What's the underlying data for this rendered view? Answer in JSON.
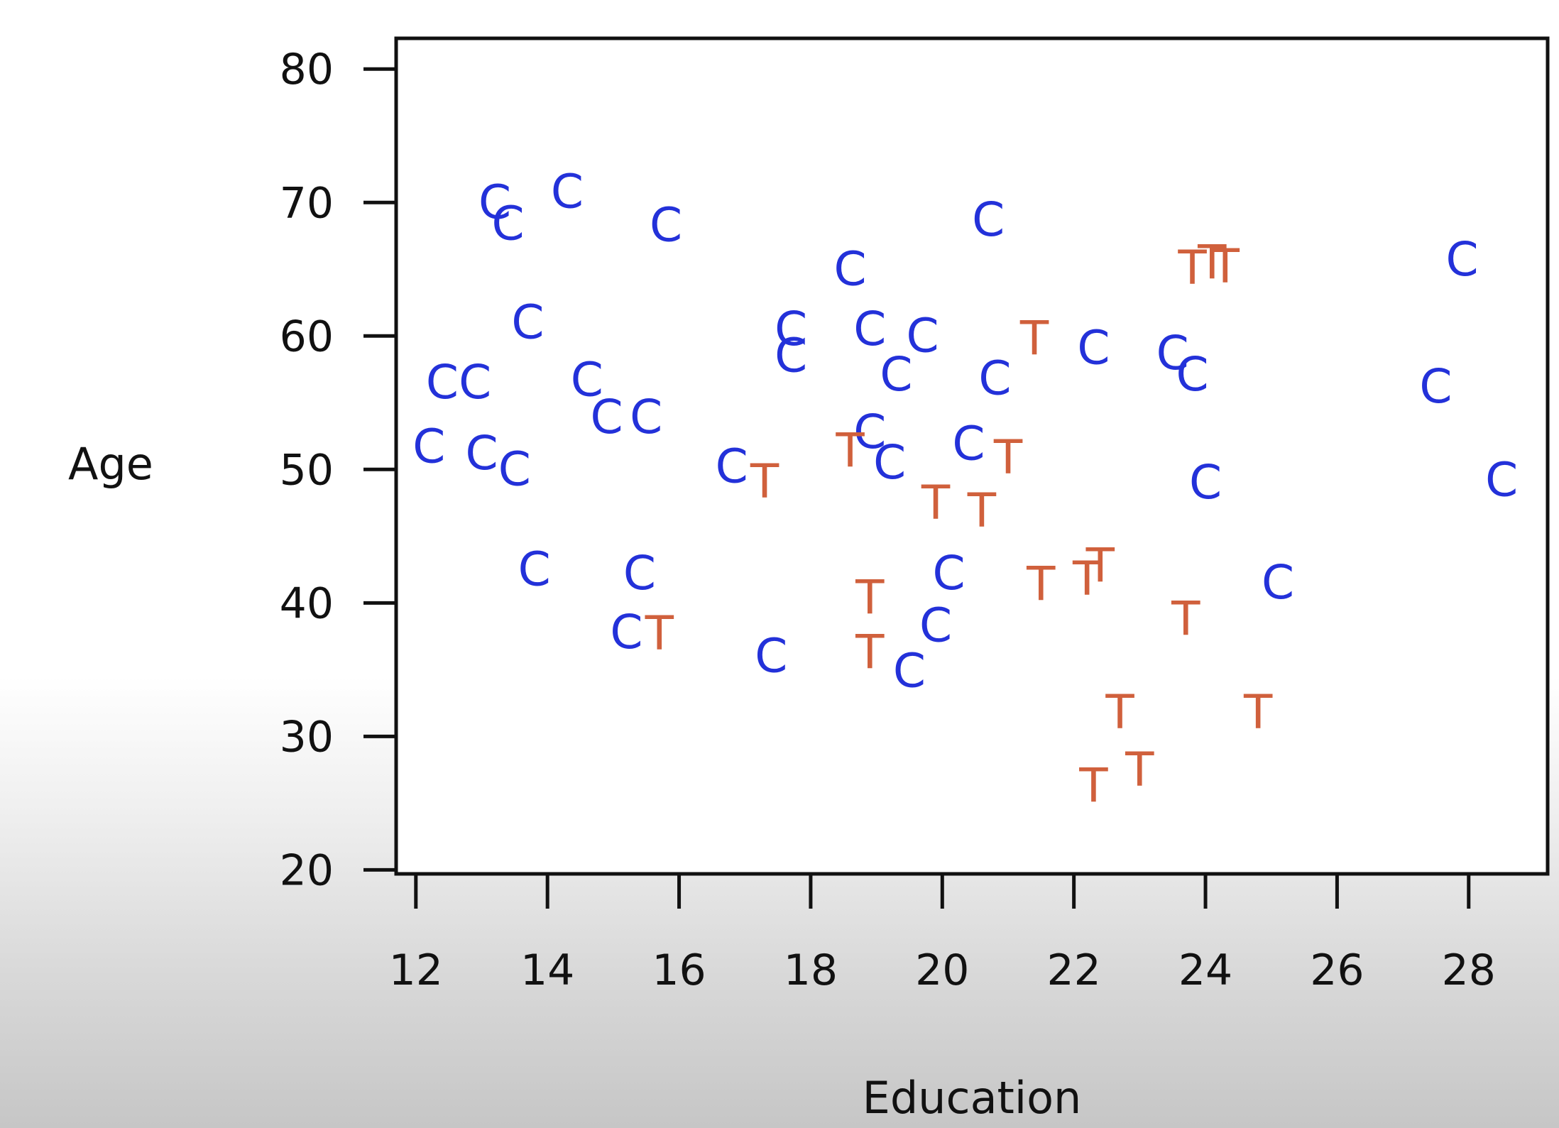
{
  "chart_data": {
    "type": "scatter",
    "xlabel": "Education",
    "ylabel": "Age",
    "xlim": [
      11.7,
      29.2
    ],
    "ylim": [
      19.7,
      82.3
    ],
    "xticks": [
      12,
      14,
      16,
      18,
      20,
      22,
      24,
      26,
      28
    ],
    "yticks": [
      20,
      30,
      40,
      50,
      60,
      70,
      80
    ],
    "grid": false,
    "legend": "none",
    "colors": {
      "C": "#2331d9",
      "T": "#d0603c",
      "axis": "#111111"
    },
    "series": [
      {
        "marker": "C",
        "points": [
          [
            13.2,
            70.1
          ],
          [
            13.4,
            68.5
          ],
          [
            14.3,
            70.9
          ],
          [
            15.8,
            68.4
          ],
          [
            20.7,
            68.8
          ],
          [
            13.7,
            61.1
          ],
          [
            12.4,
            56.6
          ],
          [
            12.9,
            56.6
          ],
          [
            14.6,
            56.8
          ],
          [
            14.9,
            54.0
          ],
          [
            15.5,
            54.0
          ],
          [
            12.2,
            51.8
          ],
          [
            13.0,
            51.3
          ],
          [
            13.5,
            50.1
          ],
          [
            17.7,
            60.6
          ],
          [
            17.7,
            58.6
          ],
          [
            18.6,
            65.1
          ],
          [
            18.9,
            60.6
          ],
          [
            19.7,
            60.1
          ],
          [
            19.3,
            57.2
          ],
          [
            20.8,
            56.9
          ],
          [
            22.3,
            59.2
          ],
          [
            23.5,
            58.8
          ],
          [
            23.8,
            57.2
          ],
          [
            27.9,
            65.8
          ],
          [
            27.5,
            56.3
          ],
          [
            28.5,
            49.3
          ],
          [
            24.0,
            49.1
          ],
          [
            16.8,
            50.3
          ],
          [
            18.9,
            52.9
          ],
          [
            19.2,
            50.6
          ],
          [
            20.4,
            52.0
          ],
          [
            13.8,
            42.6
          ],
          [
            15.4,
            42.3
          ],
          [
            20.1,
            42.3
          ],
          [
            15.2,
            37.9
          ],
          [
            17.4,
            36.1
          ],
          [
            19.9,
            38.4
          ],
          [
            19.5,
            35.0
          ],
          [
            25.1,
            41.6
          ]
        ]
      },
      {
        "marker": "T",
        "points": [
          [
            23.8,
            65.2
          ],
          [
            24.1,
            65.6
          ],
          [
            24.3,
            65.3
          ],
          [
            21.4,
            59.9
          ],
          [
            18.6,
            51.5
          ],
          [
            21.0,
            51.0
          ],
          [
            17.3,
            49.2
          ],
          [
            19.9,
            47.6
          ],
          [
            20.6,
            47.0
          ],
          [
            18.9,
            40.5
          ],
          [
            21.5,
            41.5
          ],
          [
            22.2,
            41.9
          ],
          [
            22.4,
            42.9
          ],
          [
            23.7,
            38.9
          ],
          [
            15.7,
            37.8
          ],
          [
            18.9,
            36.4
          ],
          [
            22.7,
            31.9
          ],
          [
            24.8,
            31.9
          ],
          [
            22.3,
            26.4
          ],
          [
            23.0,
            27.6
          ]
        ]
      }
    ]
  }
}
